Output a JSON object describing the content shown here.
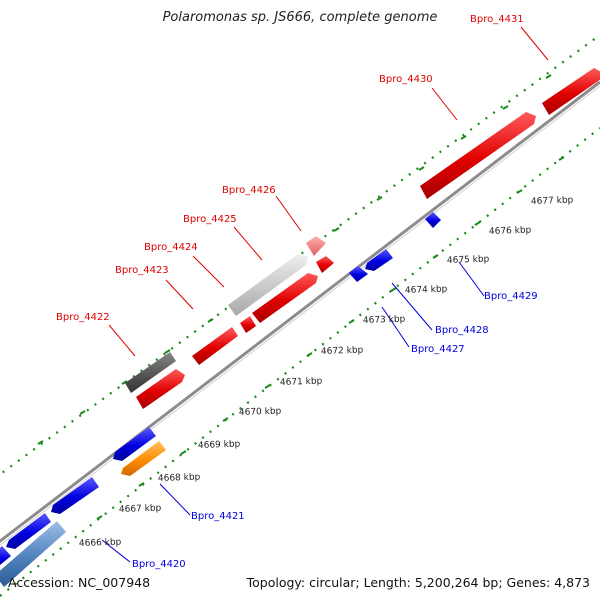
{
  "title": "Polaromonas sp. JS666, complete genome",
  "footer": {
    "accession": "Accession: NC_007948",
    "summary": "Topology: circular; Length: 5,200,264 bp; Genes: 4,873"
  },
  "ticks": [
    "4666 kbp",
    "4667 kbp",
    "4668 kbp",
    "4669 kbp",
    "4670 kbp",
    "4671 kbp",
    "4672 kbp",
    "4673 kbp",
    "4674 kbp",
    "4675 kbp",
    "4676 kbp",
    "4677 kbp"
  ],
  "genes_forward": [
    "Bpro_4422",
    "Bpro_4423",
    "Bpro_4424",
    "Bpro_4425",
    "Bpro_4426",
    "Bpro_4430",
    "Bpro_4431"
  ],
  "genes_reverse": [
    "Bpro_4420",
    "Bpro_4421",
    "Bpro_4427",
    "Bpro_4428",
    "Bpro_4429"
  ],
  "colors": {
    "forward": "#e00000",
    "reverse": "#0000e0",
    "gray_dark": "#555555",
    "gray_light": "#c8c8c8",
    "pink": "#f08080",
    "orange": "#ff8c00",
    "steel": "#4f81bd",
    "backbone": "#8c8c8c",
    "guide": "#1a8a1a"
  }
}
